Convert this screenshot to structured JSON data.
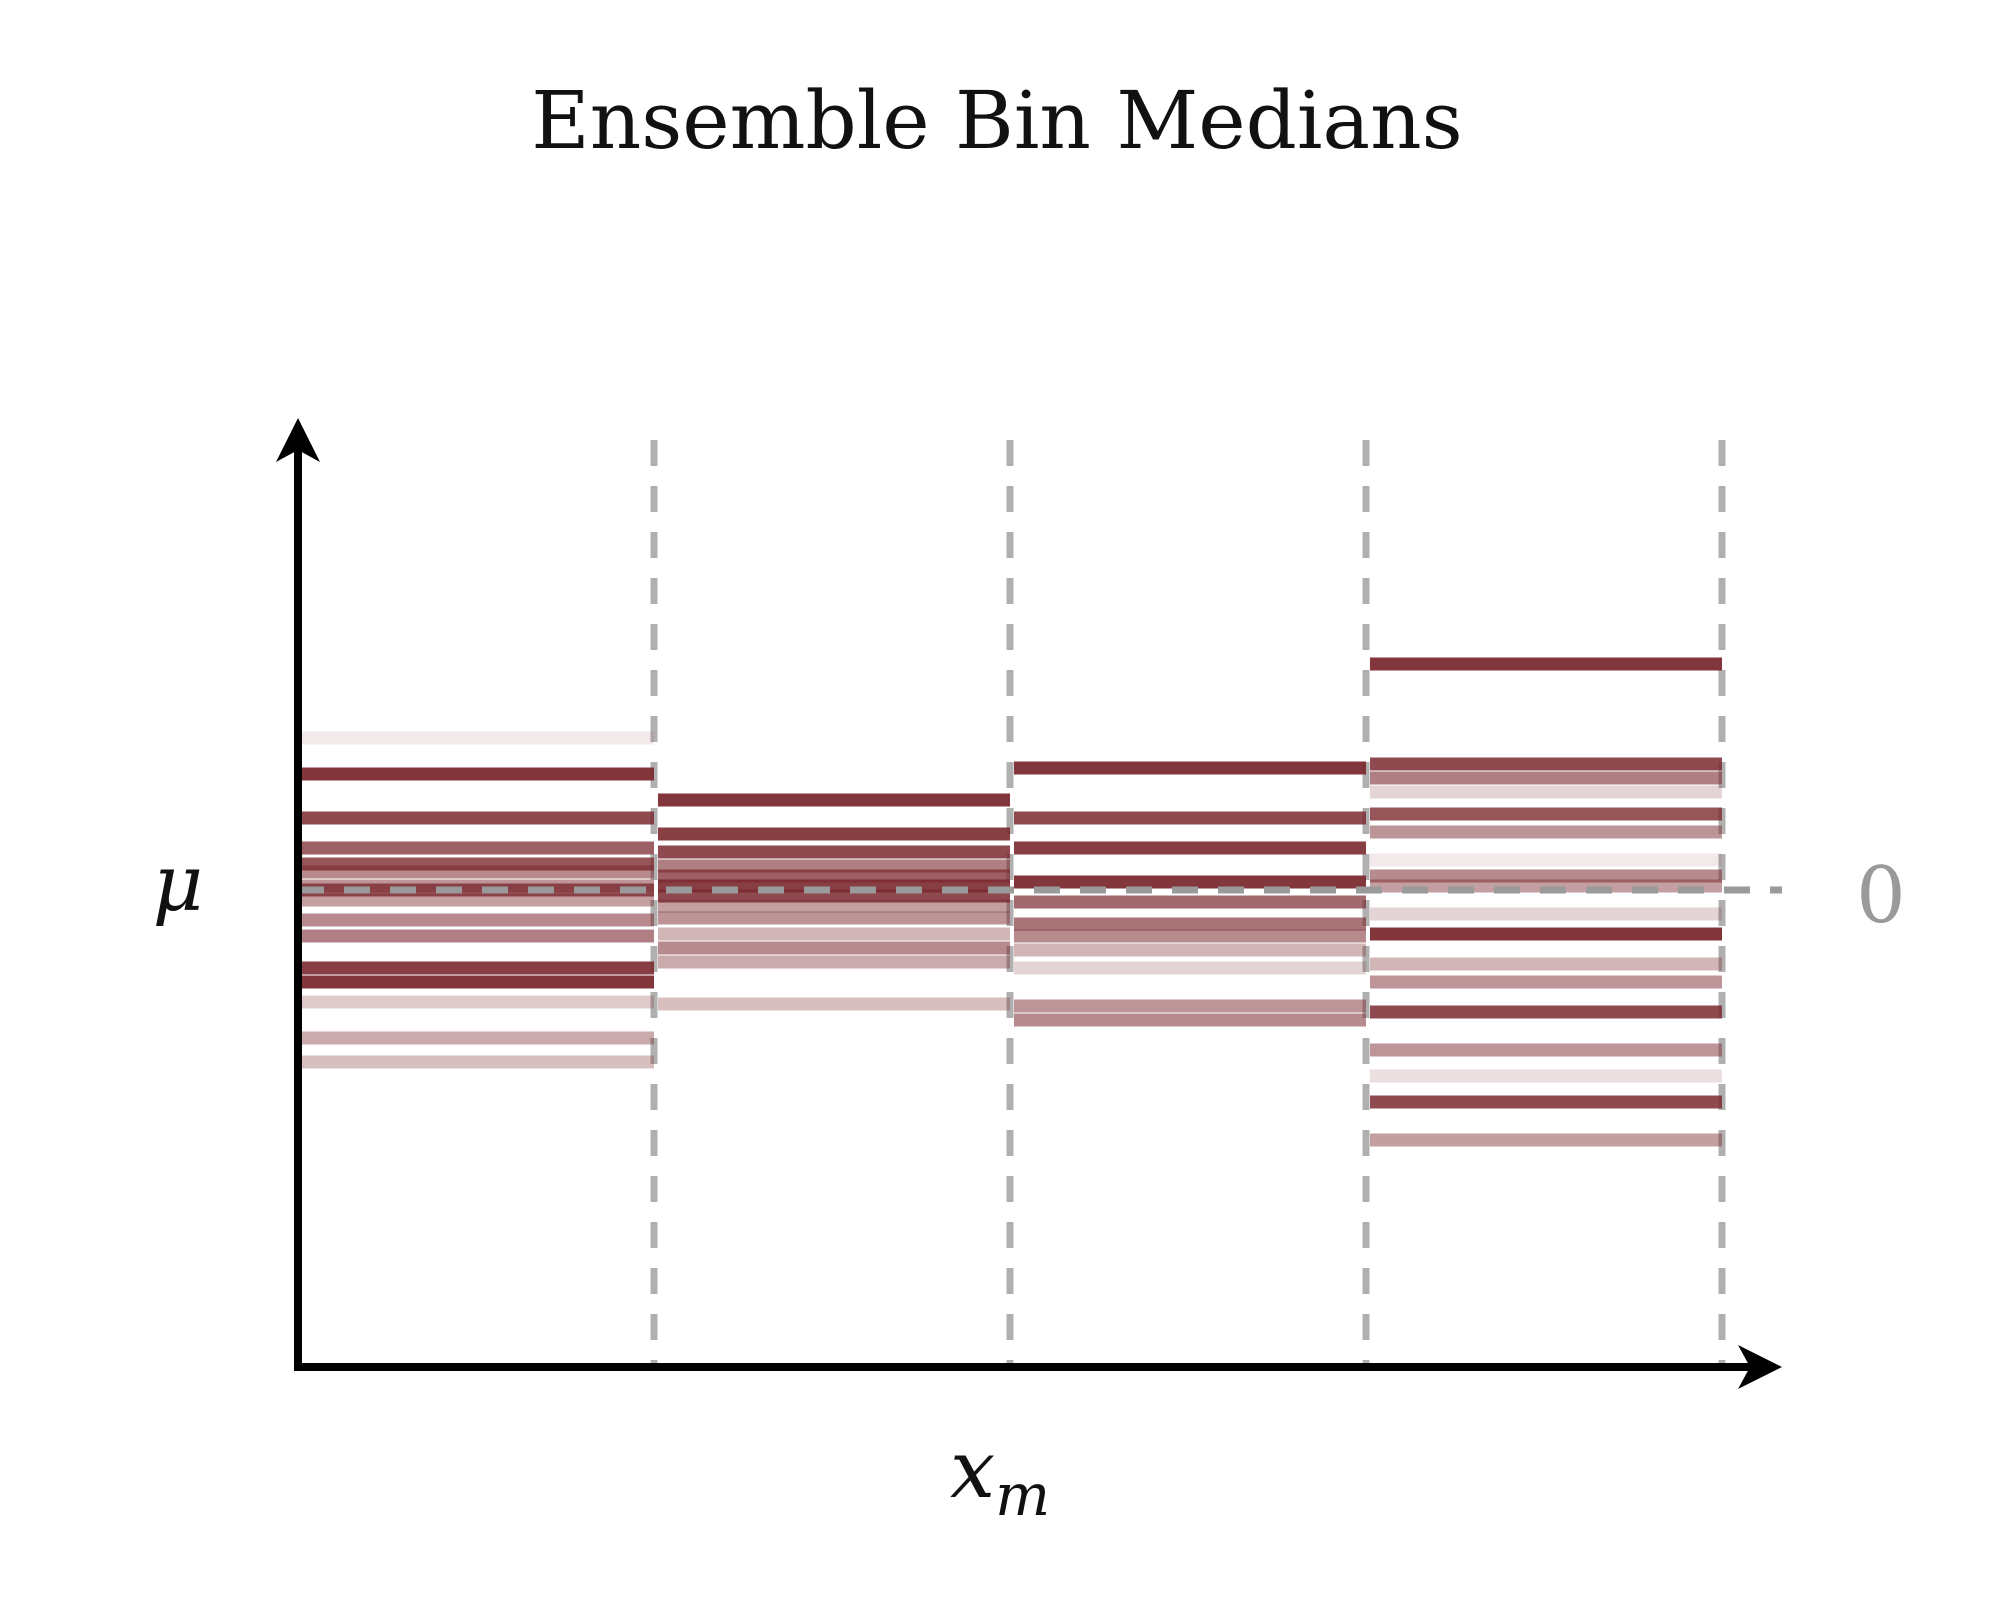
{
  "chart_data": {
    "type": "bar",
    "title": "Ensemble Bin Medians",
    "xlabel": "x",
    "xlabel_subscript": "m",
    "ylabel": "μ",
    "reference_label": "0",
    "reference_value": 0,
    "ylim": [
      -4.7,
      4.7
    ],
    "bins": [
      {
        "range": [
          0,
          1
        ],
        "medians": [
          1.52,
          1.16,
          0.72,
          0.42,
          0.26,
          0.18,
          0.04,
          0.0,
          -0.1,
          -0.3,
          -0.46,
          -0.78,
          -0.92,
          -1.12,
          -1.48,
          -1.72
        ],
        "intensities": [
          0.1,
          0.95,
          0.85,
          0.75,
          0.8,
          0.55,
          0.5,
          0.8,
          0.45,
          0.55,
          0.6,
          0.9,
          0.95,
          0.25,
          0.4,
          0.3
        ]
      },
      {
        "range": [
          1,
          2
        ],
        "medians": [
          0.9,
          0.56,
          0.38,
          0.24,
          0.14,
          0.04,
          -0.06,
          -0.16,
          -0.28,
          -0.44,
          -0.58,
          -0.72,
          -1.14
        ],
        "intensities": [
          0.95,
          0.9,
          0.85,
          0.6,
          0.75,
          0.9,
          0.85,
          0.45,
          0.5,
          0.35,
          0.55,
          0.4,
          0.3
        ]
      },
      {
        "range": [
          2,
          3
        ],
        "medians": [
          1.22,
          0.72,
          0.42,
          0.08,
          -0.12,
          -0.34,
          -0.46,
          -0.6,
          -0.78,
          -1.16,
          -1.3
        ],
        "intensities": [
          0.95,
          0.85,
          0.9,
          0.95,
          0.7,
          0.65,
          0.55,
          0.35,
          0.2,
          0.5,
          0.55
        ]
      },
      {
        "range": [
          3,
          4
        ],
        "medians": [
          2.26,
          1.26,
          1.12,
          0.98,
          0.76,
          0.58,
          0.3,
          0.14,
          0.04,
          -0.24,
          -0.44,
          -0.74,
          -0.92,
          -1.22,
          -1.6,
          -1.86,
          -2.12,
          -2.5
        ],
        "intensities": [
          0.95,
          0.85,
          0.6,
          0.2,
          0.8,
          0.5,
          0.1,
          0.55,
          0.45,
          0.2,
          0.95,
          0.35,
          0.5,
          0.85,
          0.5,
          0.15,
          0.85,
          0.45
        ]
      }
    ],
    "colors": {
      "median_line": "#7b2a30",
      "separator": "#b0b0b0",
      "reference_line": "#9a9a9a",
      "axis": "#000000"
    },
    "grid": false
  }
}
